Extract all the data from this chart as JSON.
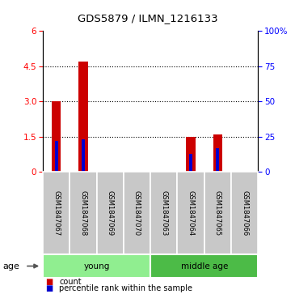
{
  "title": "GDS5879 / ILMN_1216133",
  "samples": [
    "GSM1847067",
    "GSM1847068",
    "GSM1847069",
    "GSM1847070",
    "GSM1847063",
    "GSM1847064",
    "GSM1847065",
    "GSM1847066"
  ],
  "red_values": [
    3.0,
    4.7,
    0.0,
    0.0,
    0.0,
    1.5,
    1.6,
    0.0
  ],
  "blue_values": [
    22,
    23,
    0,
    0,
    0,
    13,
    17,
    0
  ],
  "ylim_left": [
    0,
    6
  ],
  "ylim_right": [
    0,
    100
  ],
  "yticks_left": [
    0,
    1.5,
    3.0,
    4.5,
    6
  ],
  "yticks_right": [
    0,
    25,
    50,
    75,
    100
  ],
  "grid_values": [
    1.5,
    3.0,
    4.5
  ],
  "groups": [
    {
      "label": "young",
      "start": 0,
      "end": 4
    },
    {
      "label": "middle age",
      "start": 4,
      "end": 8
    }
  ],
  "group_color_young": "#90EE90",
  "group_color_middle": "#4CBB47",
  "sample_box_color": "#C8C8C8",
  "bar_color_red": "#CC0000",
  "bar_color_blue": "#0000CC",
  "age_label": "age",
  "legend_red": "count",
  "legend_blue": "percentile rank within the sample",
  "red_bar_width": 0.35,
  "blue_bar_width": 0.12
}
